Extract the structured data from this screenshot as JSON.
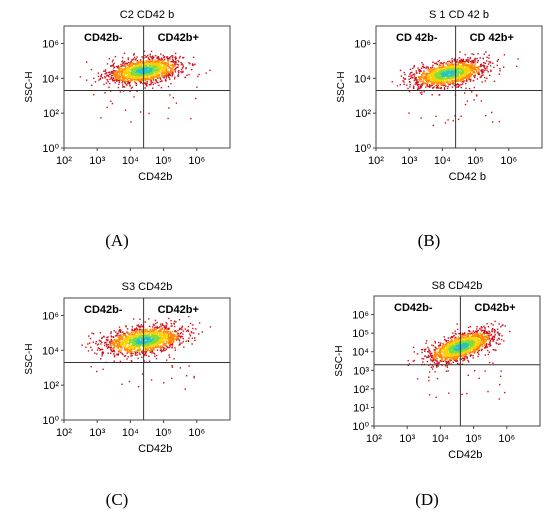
{
  "chart_data": [
    {
      "type": "scatter",
      "panel_label": "(A)",
      "title": "C2 CD42 b",
      "xlabel": "CD42b",
      "ylabel": "SSC-H",
      "x_scale": "log",
      "y_scale": "log",
      "xlim": [
        100,
        10000000
      ],
      "ylim": [
        1,
        10000000
      ],
      "x_ticks": [
        100,
        1000,
        10000,
        100000,
        1000000
      ],
      "x_tick_labels": [
        "10²",
        "10³",
        "10⁴",
        "10⁵",
        "10⁶"
      ],
      "y_ticks": [
        1,
        100,
        10000,
        1000000
      ],
      "y_tick_labels": [
        "10⁰",
        "10²",
        "10⁴",
        "10⁶"
      ],
      "gate_x": 25000,
      "gate_y": 2000,
      "quadrant_labels": [
        "CD42b-",
        "CD42b+"
      ],
      "population_center": [
        25000,
        30000
      ],
      "population_spread": [
        0.55,
        0.35
      ],
      "population_slope": 0.25
    },
    {
      "type": "scatter",
      "panel_label": "(B)",
      "title": "S 1 CD 42 b",
      "xlabel": "CD42 b",
      "ylabel": "SSC-H",
      "x_scale": "log",
      "y_scale": "log",
      "xlim": [
        100,
        10000000
      ],
      "ylim": [
        1,
        10000000
      ],
      "x_ticks": [
        100,
        1000,
        10000,
        100000,
        1000000
      ],
      "x_tick_labels": [
        "10²",
        "10³",
        "10⁴",
        "10⁵",
        "10⁶"
      ],
      "y_ticks": [
        1,
        100,
        10000,
        1000000
      ],
      "y_tick_labels": [
        "10⁰",
        "10²",
        "10⁴",
        "10⁶"
      ],
      "gate_x": 25000,
      "gate_y": 2000,
      "quadrant_labels": [
        "CD 42b-",
        "CD 42b+"
      ],
      "population_center": [
        15000,
        20000
      ],
      "population_spread": [
        0.55,
        0.35
      ],
      "population_slope": 0.3
    },
    {
      "type": "scatter",
      "panel_label": "(C)",
      "title": "S3 CD42b",
      "xlabel": "CD42b",
      "ylabel": "SSC-H",
      "x_scale": "log",
      "y_scale": "log",
      "xlim": [
        100,
        10000000
      ],
      "ylim": [
        1,
        10000000
      ],
      "x_ticks": [
        100,
        1000,
        10000,
        100000,
        1000000
      ],
      "x_tick_labels": [
        "10²",
        "10³",
        "10⁴",
        "10⁵",
        "10⁶"
      ],
      "y_ticks": [
        1,
        100,
        10000,
        1000000
      ],
      "y_tick_labels": [
        "10⁰",
        "10²",
        "10⁴",
        "10⁶"
      ],
      "gate_x": 25000,
      "gate_y": 2000,
      "quadrant_labels": [
        "CD42b-",
        "CD42b+"
      ],
      "population_center": [
        25000,
        40000
      ],
      "population_spread": [
        0.6,
        0.38
      ],
      "population_slope": 0.25
    },
    {
      "type": "scatter",
      "panel_label": "(D)",
      "title": "S8 CD42b",
      "xlabel": "CD42b",
      "ylabel": "SSC-H",
      "x_scale": "log",
      "y_scale": "log",
      "xlim": [
        100,
        10000000
      ],
      "ylim": [
        1,
        10000000
      ],
      "x_ticks": [
        100,
        1000,
        10000,
        100000,
        1000000
      ],
      "x_tick_labels": [
        "10²",
        "10³",
        "10⁴",
        "10⁵",
        "10⁶"
      ],
      "y_ticks": [
        1,
        10,
        100,
        1000,
        10000,
        100000,
        1000000
      ],
      "y_tick_labels": [
        "10⁰",
        "10¹",
        "10²",
        "10³",
        "10⁴",
        "10⁵",
        "10⁶"
      ],
      "gate_x": 40000,
      "gate_y": 2000,
      "quadrant_labels": [
        "CD42b-",
        "CD42b+"
      ],
      "population_center": [
        40000,
        20000
      ],
      "population_spread": [
        0.5,
        0.35
      ],
      "population_slope": 0.55
    }
  ],
  "colors": {
    "density": [
      "#d0101a",
      "#ff8800",
      "#ffd000",
      "#7ede3a",
      "#2ac3c0"
    ],
    "axis": "#444444",
    "text": "#000000"
  }
}
